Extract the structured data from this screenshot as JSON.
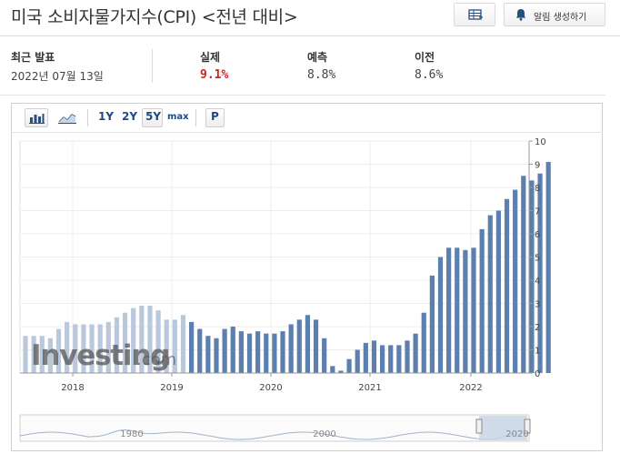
{
  "header": {
    "title": "미국 소비자물가지수(CPI) <전년 대비>",
    "alert_label": "알림 생성하기",
    "table_icon": "table-icon",
    "bell_icon": "bell-icon"
  },
  "stats": {
    "latest": {
      "label": "최근 발표",
      "value": "2022년 07월 13일"
    },
    "actual": {
      "label": "실제",
      "value": "9.1%"
    },
    "forecast": {
      "label": "예측",
      "value": "8.8%"
    },
    "previous": {
      "label": "이전",
      "value": "8.6%"
    }
  },
  "toolbar": {
    "bar_icon": "bar-chart-icon",
    "line_icon": "line-chart-icon",
    "ranges": [
      "1Y",
      "2Y",
      "5Y",
      "max"
    ],
    "selected_range": "5Y",
    "p_label": "P"
  },
  "watermark": {
    "brand": "Investing",
    "suffix": ".com"
  },
  "colors": {
    "bar": "#5b7fae",
    "bar_faded": "#b9c8dc",
    "accent_red": "#d41f1f",
    "link_blue": "#1b4a8a"
  },
  "chart_data": {
    "type": "bar",
    "ylim": [
      0,
      10
    ],
    "y_ticks": [
      0,
      1,
      2,
      3,
      4,
      5,
      6,
      7,
      8,
      9,
      10
    ],
    "y_axis_side": "right",
    "x_ticks": [
      "2018",
      "2019",
      "2020",
      "2021",
      "2022"
    ],
    "grid": true,
    "series": [
      {
        "values": [
          1.6,
          1.6,
          1.6,
          1.5,
          1.9,
          2.2,
          2.1,
          2.1,
          2.1,
          2.1,
          2.2,
          2.4,
          2.6,
          2.8,
          2.9,
          2.9,
          2.7,
          2.3,
          2.3,
          2.5,
          2.2,
          1.9,
          1.6,
          1.5,
          1.9,
          2.0,
          1.8,
          1.7,
          1.8,
          1.7,
          1.7,
          1.8,
          2.1,
          2.3,
          2.5,
          2.3,
          1.5,
          0.3,
          0.1,
          0.6,
          1.0,
          1.3,
          1.4,
          1.2,
          1.2,
          1.2,
          1.4,
          1.7,
          2.6,
          4.2,
          5.0,
          5.4,
          5.4,
          5.3,
          5.4,
          6.2,
          6.8,
          7.0,
          7.5,
          7.9,
          8.5,
          8.3,
          8.6,
          9.1
        ]
      }
    ],
    "navigator": {
      "x_ticks": [
        "1980",
        "2000",
        "2020"
      ]
    }
  }
}
